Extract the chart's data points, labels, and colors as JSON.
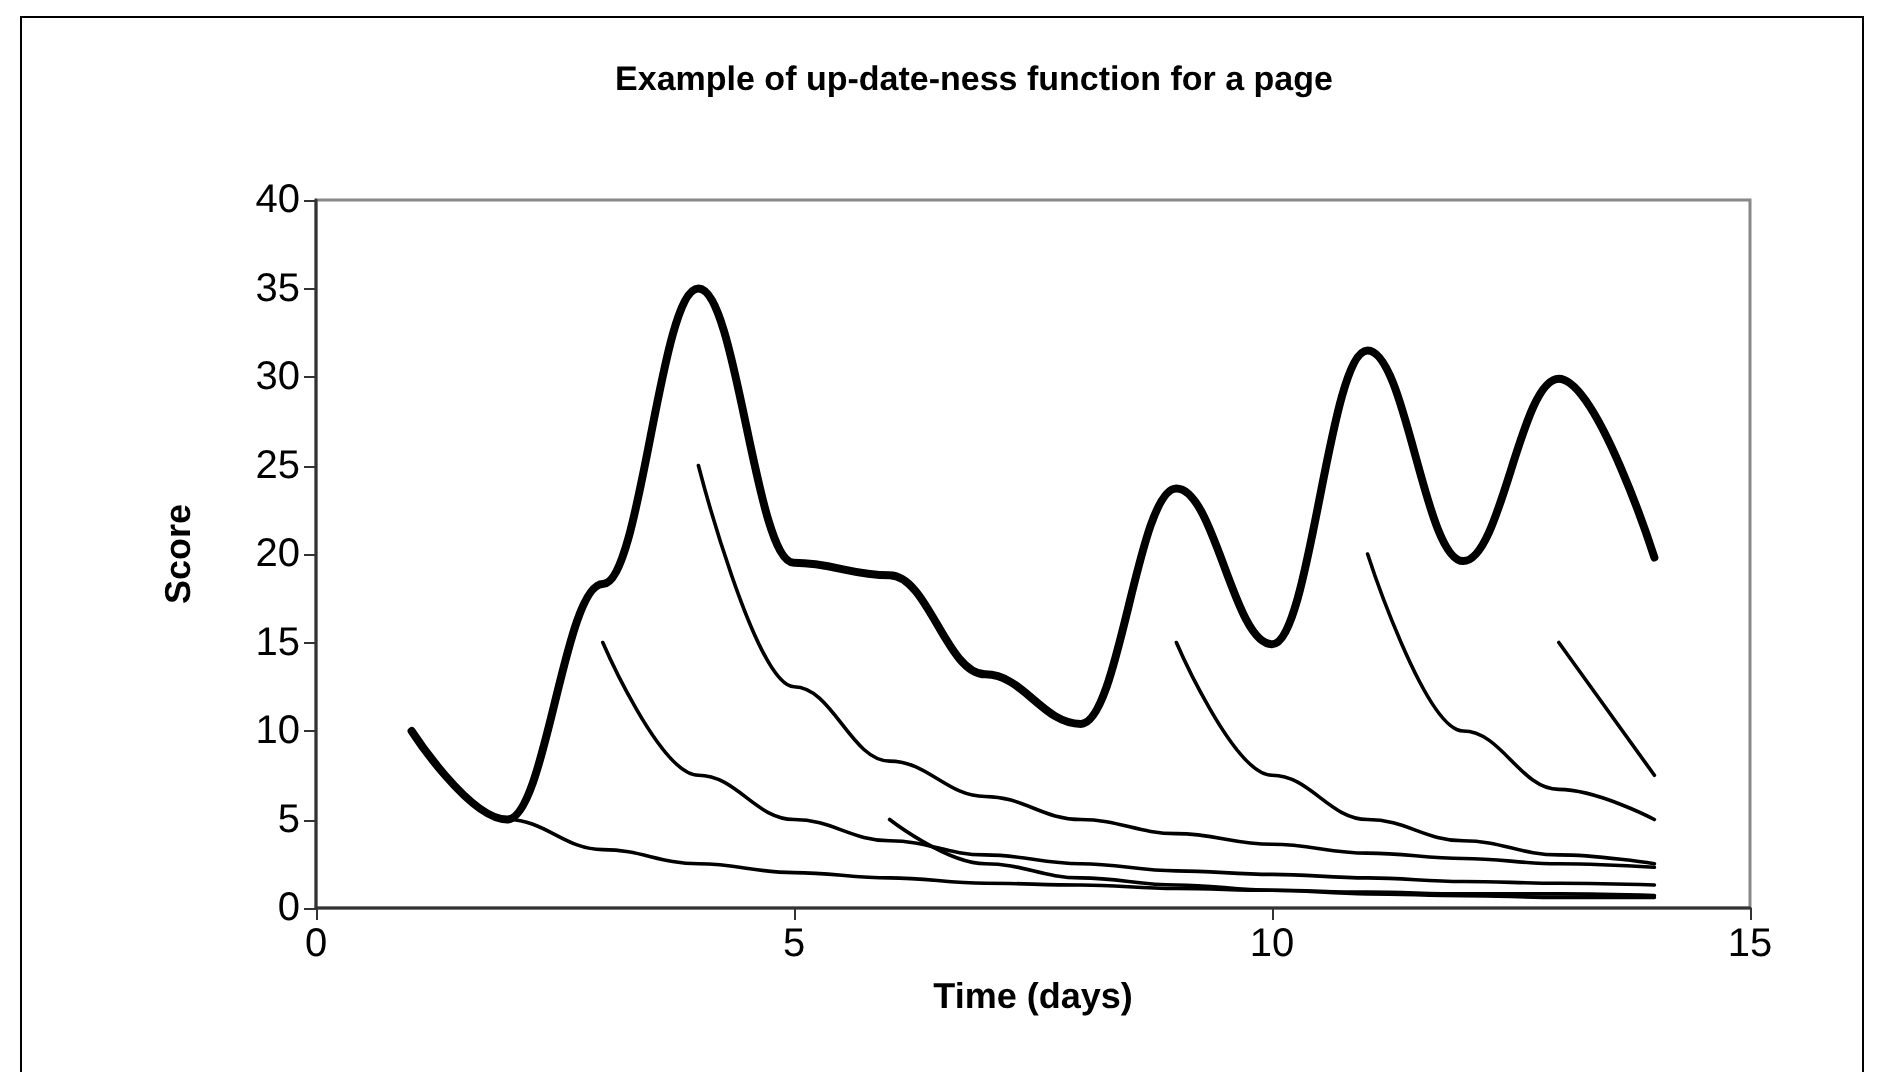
{
  "chart_data": {
    "type": "line",
    "title": "Example of up-date-ness function for a page",
    "xlabel": "Time (days)",
    "ylabel": "Score",
    "xlim": [
      0,
      15
    ],
    "xticks": [
      0,
      5,
      10,
      15
    ],
    "ylim": [
      0,
      40
    ],
    "yticks": [
      0,
      5,
      10,
      15,
      20,
      25,
      30,
      35,
      40
    ],
    "marker": "none",
    "line_style": "solid",
    "series": [
      {
        "color": "#000000",
        "x": [
          1,
          2,
          3,
          4,
          5,
          6,
          7,
          8,
          9,
          10,
          11,
          12,
          13,
          14
        ],
        "values": [
          10,
          5,
          18.3,
          35,
          19.5,
          18.8,
          13.2,
          10.4,
          23.7,
          14.9,
          31.5,
          19.6,
          29.9,
          19.8
        ]
      },
      {
        "color": "#000000",
        "x": [
          1,
          2,
          3,
          4,
          5,
          6,
          7,
          8,
          9,
          10,
          11,
          12,
          13,
          14
        ],
        "values": [
          10,
          5,
          3.3,
          2.5,
          2,
          1.7,
          1.4,
          1.3,
          1.1,
          1,
          0.9,
          0.8,
          0.8,
          0.7
        ]
      },
      {
        "color": "#000000",
        "x": [
          3,
          4,
          5,
          6,
          7,
          8,
          9,
          10,
          11,
          12,
          13,
          14
        ],
        "values": [
          15,
          7.5,
          5,
          3.8,
          3,
          2.5,
          2.1,
          1.9,
          1.7,
          1.5,
          1.4,
          1.3
        ]
      },
      {
        "color": "#000000",
        "x": [
          4,
          5,
          6,
          7,
          8,
          9,
          10,
          11,
          12,
          13,
          14
        ],
        "values": [
          25,
          12.5,
          8.3,
          6.3,
          5,
          4.2,
          3.6,
          3.1,
          2.8,
          2.5,
          2.3
        ]
      },
      {
        "color": "#000000",
        "x": [
          6,
          7,
          8,
          9,
          10,
          11,
          12,
          13,
          14
        ],
        "values": [
          5,
          2.5,
          1.7,
          1.3,
          1,
          0.8,
          0.7,
          0.6,
          0.6
        ]
      },
      {
        "color": "#000000",
        "x": [
          9,
          10,
          11,
          12,
          13,
          14
        ],
        "values": [
          15,
          7.5,
          5,
          3.8,
          3,
          2.5
        ]
      },
      {
        "color": "#000000",
        "x": [
          11,
          12,
          13,
          14
        ],
        "values": [
          20,
          10,
          6.7,
          5
        ]
      },
      {
        "color": "#000000",
        "x": [
          13,
          14
        ],
        "values": [
          15,
          7.5
        ]
      }
    ]
  }
}
